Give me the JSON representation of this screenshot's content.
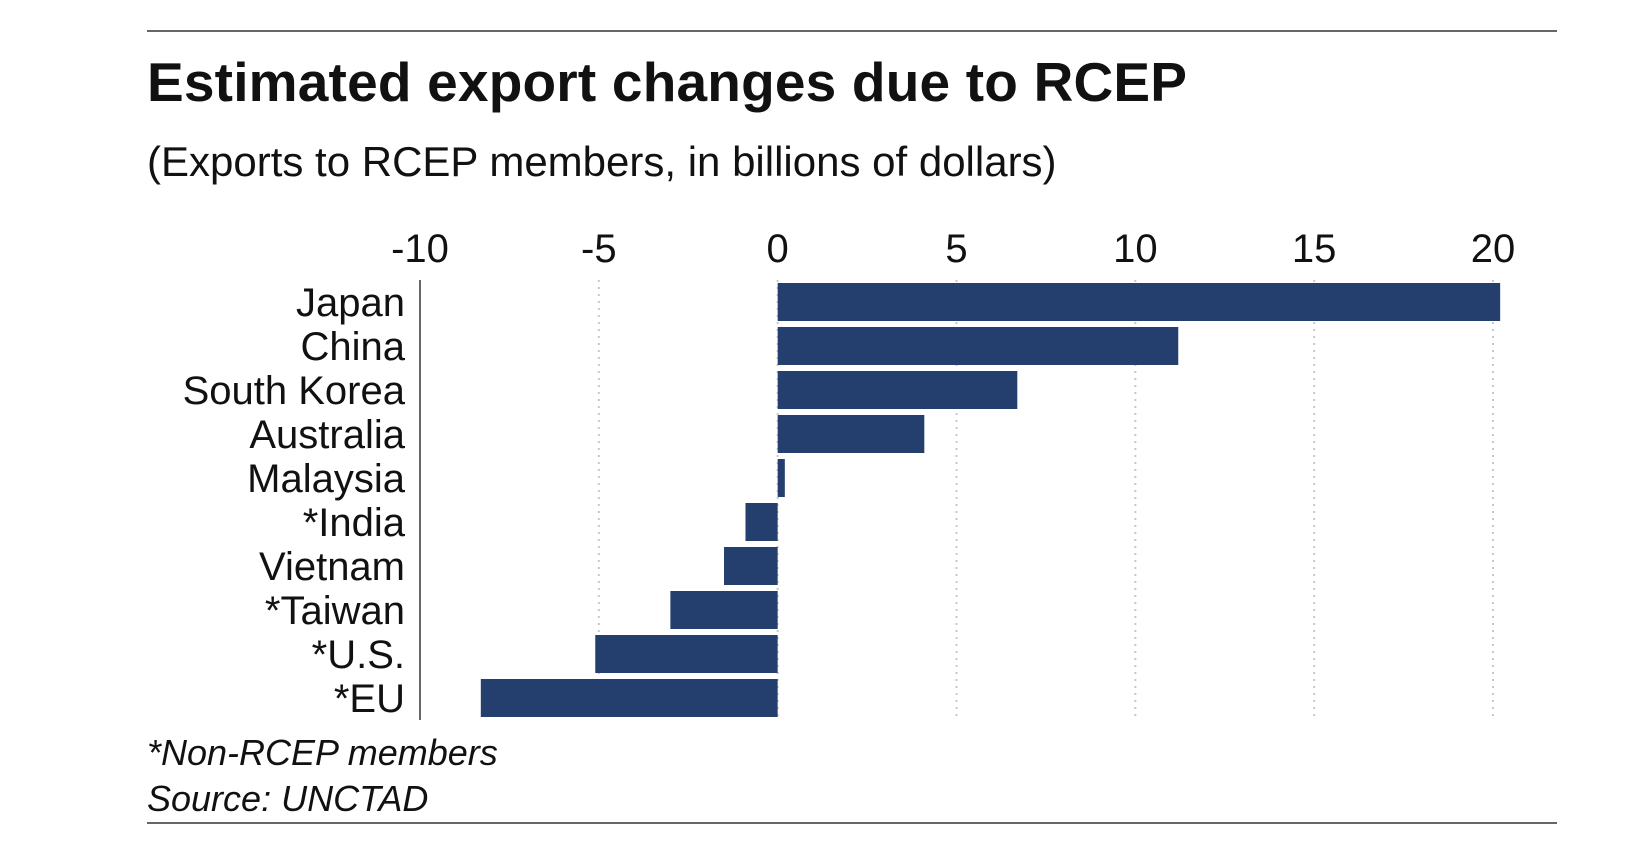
{
  "header": {
    "title": "Estimated export changes due to RCEP",
    "subtitle": "(Exports to RCEP members, in billions of dollars)"
  },
  "footer": {
    "note": "*Non-RCEP members",
    "source": "Source: UNCTAD"
  },
  "chart_data": {
    "type": "bar",
    "orientation": "horizontal",
    "title": "Estimated export changes due to RCEP",
    "subtitle": "(Exports to RCEP members, in billions of dollars)",
    "categories": [
      "Japan",
      "China",
      "South Korea",
      "Australia",
      "Malaysia",
      "*India",
      "Vietnam",
      "*Taiwan",
      "*U.S.",
      "*EU"
    ],
    "values": [
      20.2,
      11.2,
      6.7,
      4.1,
      0.2,
      -0.9,
      -1.5,
      -3.0,
      -5.1,
      -8.3
    ],
    "xlim": [
      -10,
      20
    ],
    "xticks": [
      "-10",
      "-5",
      "0",
      "5",
      "10",
      "15",
      "20"
    ],
    "tick_position": "top",
    "grid": true,
    "bar_color": "#243f6e",
    "grid_color": "#c8c8c8"
  }
}
